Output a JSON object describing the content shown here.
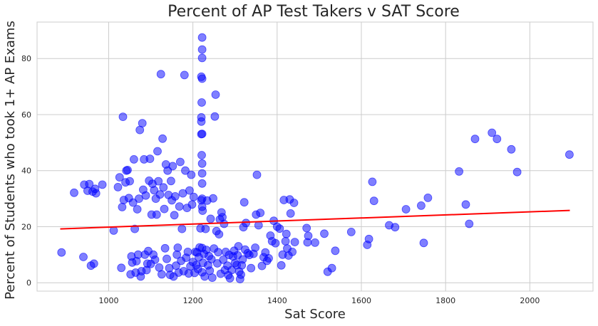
{
  "chart_data": {
    "type": "scatter",
    "title": "Percent of AP Test Takers v SAT Score",
    "xlabel": "Sat Score",
    "ylabel": "Percent of Students who took 1+ AP Exams",
    "xlim": [
      830,
      2150
    ],
    "ylim": [
      -3,
      93
    ],
    "xticks": [
      1000,
      1200,
      1400,
      1600,
      1800,
      2000
    ],
    "yticks": [
      0,
      20,
      40,
      60,
      80
    ],
    "grid": true,
    "colors": {
      "points": "#0000ff",
      "trend": "#ff0000",
      "grid": "#cccccc",
      "frame": "#cccccc",
      "text": "#262626"
    },
    "trend_line": {
      "x": [
        885,
        2095
      ],
      "y": [
        19.2,
        25.8
      ]
    },
    "series": [
      {
        "points": [
          [
            888,
            10.8
          ],
          [
            918,
            32.1
          ],
          [
            940,
            9.2
          ],
          [
            942,
            35
          ],
          [
            950,
            32.8
          ],
          [
            954,
            35.2
          ],
          [
            958,
            6.1
          ],
          [
            962,
            32.5
          ],
          [
            965,
            6.8
          ],
          [
            968,
            33.5
          ],
          [
            970,
            31.9
          ],
          [
            985,
            35
          ],
          [
            1012,
            18.6
          ],
          [
            1022,
            34.1
          ],
          [
            1026,
            37.6
          ],
          [
            1030,
            5.3
          ],
          [
            1032,
            27
          ],
          [
            1034,
            59.2
          ],
          [
            1036,
            29.5
          ],
          [
            1040,
            35.8
          ],
          [
            1042,
            40
          ],
          [
            1045,
            40.2
          ],
          [
            1048,
            30.2
          ],
          [
            1050,
            36.2
          ],
          [
            1052,
            3
          ],
          [
            1054,
            9.4
          ],
          [
            1056,
            7.2
          ],
          [
            1058,
            28.6
          ],
          [
            1060,
            44
          ],
          [
            1062,
            19.2
          ],
          [
            1064,
            3.6
          ],
          [
            1066,
            7.7
          ],
          [
            1068,
            26.2
          ],
          [
            1070,
            10
          ],
          [
            1072,
            30
          ],
          [
            1074,
            54.5
          ],
          [
            1076,
            2.2
          ],
          [
            1078,
            4.1
          ],
          [
            1080,
            56.9
          ],
          [
            1082,
            33.2
          ],
          [
            1084,
            44
          ],
          [
            1086,
            10
          ],
          [
            1088,
            31.1
          ],
          [
            1090,
            4.5
          ],
          [
            1092,
            6.8
          ],
          [
            1094,
            11.3
          ],
          [
            1096,
            36.4
          ],
          [
            1098,
            44.2
          ],
          [
            1100,
            6.7
          ],
          [
            1102,
            24.3
          ],
          [
            1104,
            35.3
          ],
          [
            1106,
            10
          ],
          [
            1108,
            33
          ],
          [
            1110,
            8.2
          ],
          [
            1112,
            30
          ],
          [
            1114,
            24.3
          ],
          [
            1116,
            46.9
          ],
          [
            1118,
            36.2
          ],
          [
            1120,
            5.4
          ],
          [
            1122,
            31.5
          ],
          [
            1124,
            74.4
          ],
          [
            1126,
            3
          ],
          [
            1128,
            51.4
          ],
          [
            1130,
            34
          ],
          [
            1132,
            26.3
          ],
          [
            1134,
            12.3
          ],
          [
            1136,
            42.2
          ],
          [
            1138,
            8.5
          ],
          [
            1140,
            40
          ],
          [
            1142,
            31.3
          ],
          [
            1144,
            5.2
          ],
          [
            1146,
            2.8
          ],
          [
            1148,
            36.3
          ],
          [
            1150,
            29.4
          ],
          [
            1152,
            41.6
          ],
          [
            1154,
            2.2
          ],
          [
            1156,
            24.1
          ],
          [
            1158,
            30.8
          ],
          [
            1160,
            6.1
          ],
          [
            1162,
            10
          ],
          [
            1164,
            12.5
          ],
          [
            1166,
            3.6
          ],
          [
            1168,
            27.2
          ],
          [
            1170,
            43.1
          ],
          [
            1172,
            7.8
          ],
          [
            1174,
            19.2
          ],
          [
            1176,
            31.9
          ],
          [
            1178,
            4.1
          ],
          [
            1180,
            74.1
          ],
          [
            1182,
            40
          ],
          [
            1184,
            8.9
          ],
          [
            1186,
            26.7
          ],
          [
            1188,
            11
          ],
          [
            1190,
            3.3
          ],
          [
            1192,
            32.9
          ],
          [
            1194,
            5.9
          ],
          [
            1196,
            38.5
          ],
          [
            1198,
            27.9
          ],
          [
            1200,
            7.4
          ],
          [
            1202,
            30.6
          ],
          [
            1204,
            3.5
          ],
          [
            1206,
            11
          ],
          [
            1208,
            6.3
          ],
          [
            1210,
            10.8
          ],
          [
            1212,
            4.9
          ],
          [
            1214,
            9.1
          ],
          [
            1216,
            12.6
          ],
          [
            1218,
            19.4
          ],
          [
            1220,
            53
          ],
          [
            1220,
            57.5
          ],
          [
            1220,
            59
          ],
          [
            1220,
            29.4
          ],
          [
            1220,
            73.5
          ],
          [
            1221,
            64.3
          ],
          [
            1221,
            45.5
          ],
          [
            1222,
            87.5
          ],
          [
            1222,
            83.2
          ],
          [
            1222,
            80.2
          ],
          [
            1222,
            72.8
          ],
          [
            1222,
            53.1
          ],
          [
            1222,
            42.5
          ],
          [
            1222,
            39
          ],
          [
            1222,
            35.4
          ],
          [
            1222,
            30
          ],
          [
            1222,
            27.1
          ],
          [
            1222,
            12.4
          ],
          [
            1222,
            3.7
          ],
          [
            1223,
            25.7
          ],
          [
            1224,
            7.1
          ],
          [
            1226,
            10.3
          ],
          [
            1228,
            2.2
          ],
          [
            1230,
            19.2
          ],
          [
            1232,
            11.7
          ],
          [
            1234,
            29.3
          ],
          [
            1236,
            6.2
          ],
          [
            1238,
            9.5
          ],
          [
            1240,
            4.3
          ],
          [
            1242,
            22.8
          ],
          [
            1244,
            8.4
          ],
          [
            1246,
            1.8
          ],
          [
            1248,
            30.1
          ],
          [
            1250,
            12.2
          ],
          [
            1252,
            59.3
          ],
          [
            1254,
            67.1
          ],
          [
            1256,
            18.4
          ],
          [
            1258,
            6.9
          ],
          [
            1260,
            10.9
          ],
          [
            1262,
            17.3
          ],
          [
            1264,
            22.6
          ],
          [
            1266,
            3.2
          ],
          [
            1268,
            25.1
          ],
          [
            1270,
            23.4
          ],
          [
            1272,
            8.2
          ],
          [
            1274,
            21
          ],
          [
            1276,
            4.5
          ],
          [
            1278,
            11
          ],
          [
            1282,
            6.1
          ],
          [
            1284,
            2.7
          ],
          [
            1286,
            9.9
          ],
          [
            1288,
            1.6
          ],
          [
            1292,
            4.5
          ],
          [
            1295,
            9.4
          ],
          [
            1298,
            11.4
          ],
          [
            1300,
            7
          ],
          [
            1304,
            6.3
          ],
          [
            1306,
            9.8
          ],
          [
            1308,
            13
          ],
          [
            1310,
            4
          ],
          [
            1312,
            1.3
          ],
          [
            1314,
            2.9
          ],
          [
            1316,
            6.2
          ],
          [
            1318,
            8.3
          ],
          [
            1320,
            19.8
          ],
          [
            1322,
            28.7
          ],
          [
            1324,
            11.8
          ],
          [
            1326,
            21.3
          ],
          [
            1330,
            10.5
          ],
          [
            1334,
            9.9
          ],
          [
            1338,
            5.2
          ],
          [
            1344,
            10.3
          ],
          [
            1348,
            12.5
          ],
          [
            1350,
            24.3
          ],
          [
            1352,
            38.5
          ],
          [
            1356,
            20.5
          ],
          [
            1360,
            24.9
          ],
          [
            1364,
            6
          ],
          [
            1368,
            9.1
          ],
          [
            1372,
            10.8
          ],
          [
            1376,
            7.8
          ],
          [
            1380,
            8.7
          ],
          [
            1384,
            16.8
          ],
          [
            1388,
            14.8
          ],
          [
            1392,
            22.1
          ],
          [
            1396,
            14.1
          ],
          [
            1400,
            20
          ],
          [
            1406,
            19.3
          ],
          [
            1410,
            6.2
          ],
          [
            1413,
            10
          ],
          [
            1416,
            29.5
          ],
          [
            1420,
            14.8
          ],
          [
            1422,
            17.4
          ],
          [
            1424,
            12.2
          ],
          [
            1427,
            9.7
          ],
          [
            1430,
            29.7
          ],
          [
            1432,
            24.7
          ],
          [
            1436,
            11
          ],
          [
            1440,
            28.5
          ],
          [
            1442,
            14.5
          ],
          [
            1470,
            19.5
          ],
          [
            1472,
            14.4
          ],
          [
            1474,
            16.7
          ],
          [
            1490,
            14.3
          ],
          [
            1512,
            17.5
          ],
          [
            1520,
            3.9
          ],
          [
            1530,
            5.2
          ],
          [
            1538,
            11.4
          ],
          [
            1576,
            18.1
          ],
          [
            1614,
            13.5
          ],
          [
            1618,
            15.6
          ],
          [
            1626,
            36
          ],
          [
            1630,
            29.2
          ],
          [
            1666,
            20.5
          ],
          [
            1680,
            19.8
          ],
          [
            1706,
            26.2
          ],
          [
            1742,
            27.5
          ],
          [
            1748,
            14.2
          ],
          [
            1758,
            30.3
          ],
          [
            1832,
            39.7
          ],
          [
            1848,
            27.9
          ],
          [
            1856,
            21
          ],
          [
            1870,
            51.3
          ],
          [
            1910,
            53.5
          ],
          [
            1922,
            51.3
          ],
          [
            1956,
            47.6
          ],
          [
            1970,
            39.5
          ],
          [
            2094,
            45.7
          ]
        ]
      }
    ]
  }
}
